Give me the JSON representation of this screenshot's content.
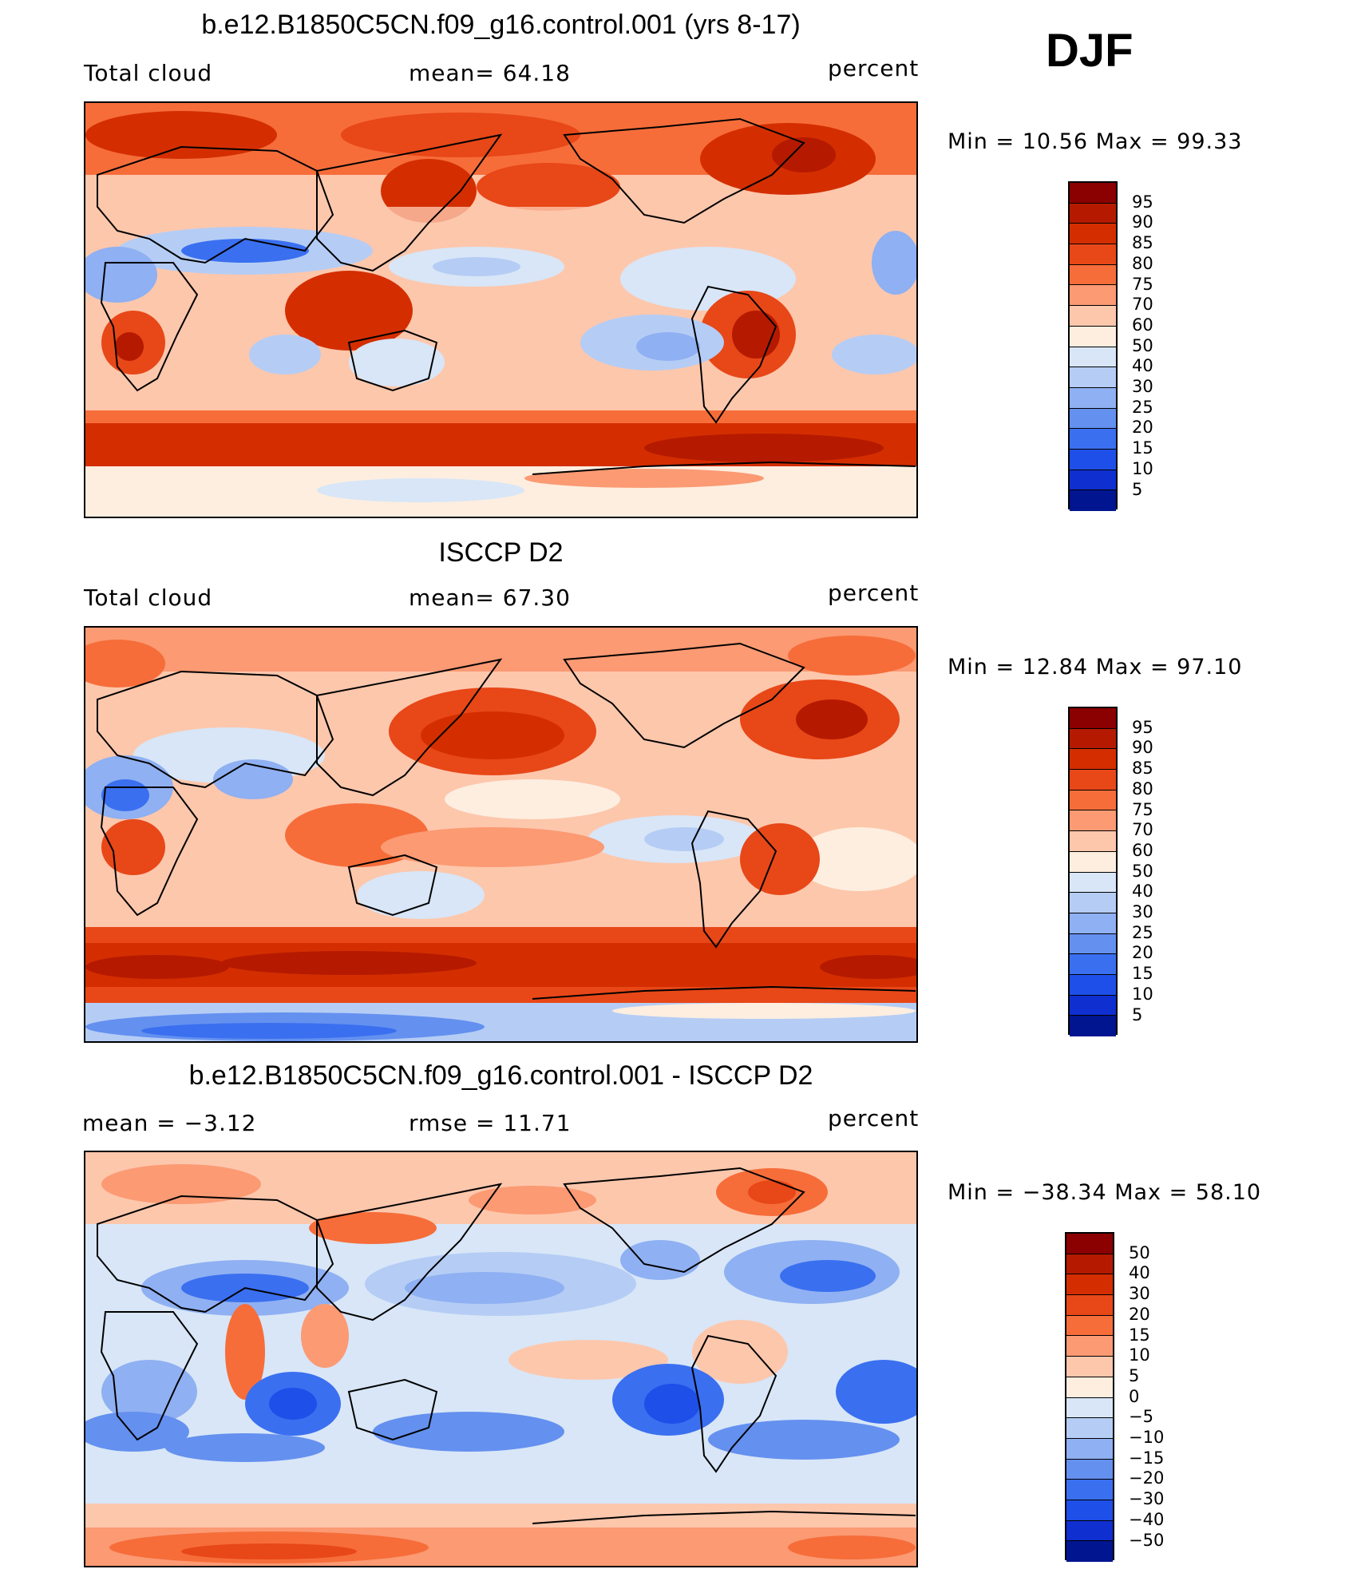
{
  "season": "DJF",
  "palette_abs": [
    "#8b0000",
    "#b51a00",
    "#d42e00",
    "#e84718",
    "#f66d3a",
    "#fb9a73",
    "#fdc7ac",
    "#fdeee0",
    "#d8e6f7",
    "#b5cdf5",
    "#8fb0f2",
    "#6490ef",
    "#3a6ff0",
    "#1e4fe8",
    "#0f2fd0",
    "#00158f"
  ],
  "palette_diff": [
    "#8b0000",
    "#b51a00",
    "#d42e00",
    "#e84718",
    "#f66d3a",
    "#fb9a73",
    "#fdc7ac",
    "#fdeee0",
    "#d8e6f7",
    "#b5cdf5",
    "#8fb0f2",
    "#6490ef",
    "#3a6ff0",
    "#1e4fe8",
    "#0f2fd0",
    "#00158f"
  ],
  "panels": [
    {
      "title": "b.e12.B1850C5CN.f09_g16.control.001 (yrs 8-17)",
      "left_label": "Total cloud",
      "center_label": "mean=   64.18",
      "right_label": "percent",
      "minmax": "Min  =    10.56  Max  =    99.33",
      "colorbar_labels": [
        "95",
        "90",
        "85",
        "80",
        "75",
        "70",
        "60",
        "50",
        "40",
        "30",
        "25",
        "20",
        "15",
        "10",
        "5"
      ]
    },
    {
      "title": "ISCCP D2",
      "left_label": "Total cloud",
      "center_label": "mean=   67.30",
      "right_label": "percent",
      "minmax": "Min  =    12.84  Max  =    97.10",
      "colorbar_labels": [
        "95",
        "90",
        "85",
        "80",
        "75",
        "70",
        "60",
        "50",
        "40",
        "30",
        "25",
        "20",
        "15",
        "10",
        "5"
      ]
    },
    {
      "title": "b.e12.B1850C5CN.f09_g16.control.001 - ISCCP D2",
      "left_label": "mean  =    −3.12",
      "center_label": "rmse  =    11.71",
      "right_label": "percent",
      "minmax": "Min  =  −38.34  Max  =    58.10",
      "colorbar_labels": [
        "50",
        "40",
        "30",
        "20",
        "15",
        "10",
        "5",
        "0",
        "−5",
        "−10",
        "−15",
        "−20",
        "−30",
        "−40",
        "−50"
      ]
    }
  ]
}
